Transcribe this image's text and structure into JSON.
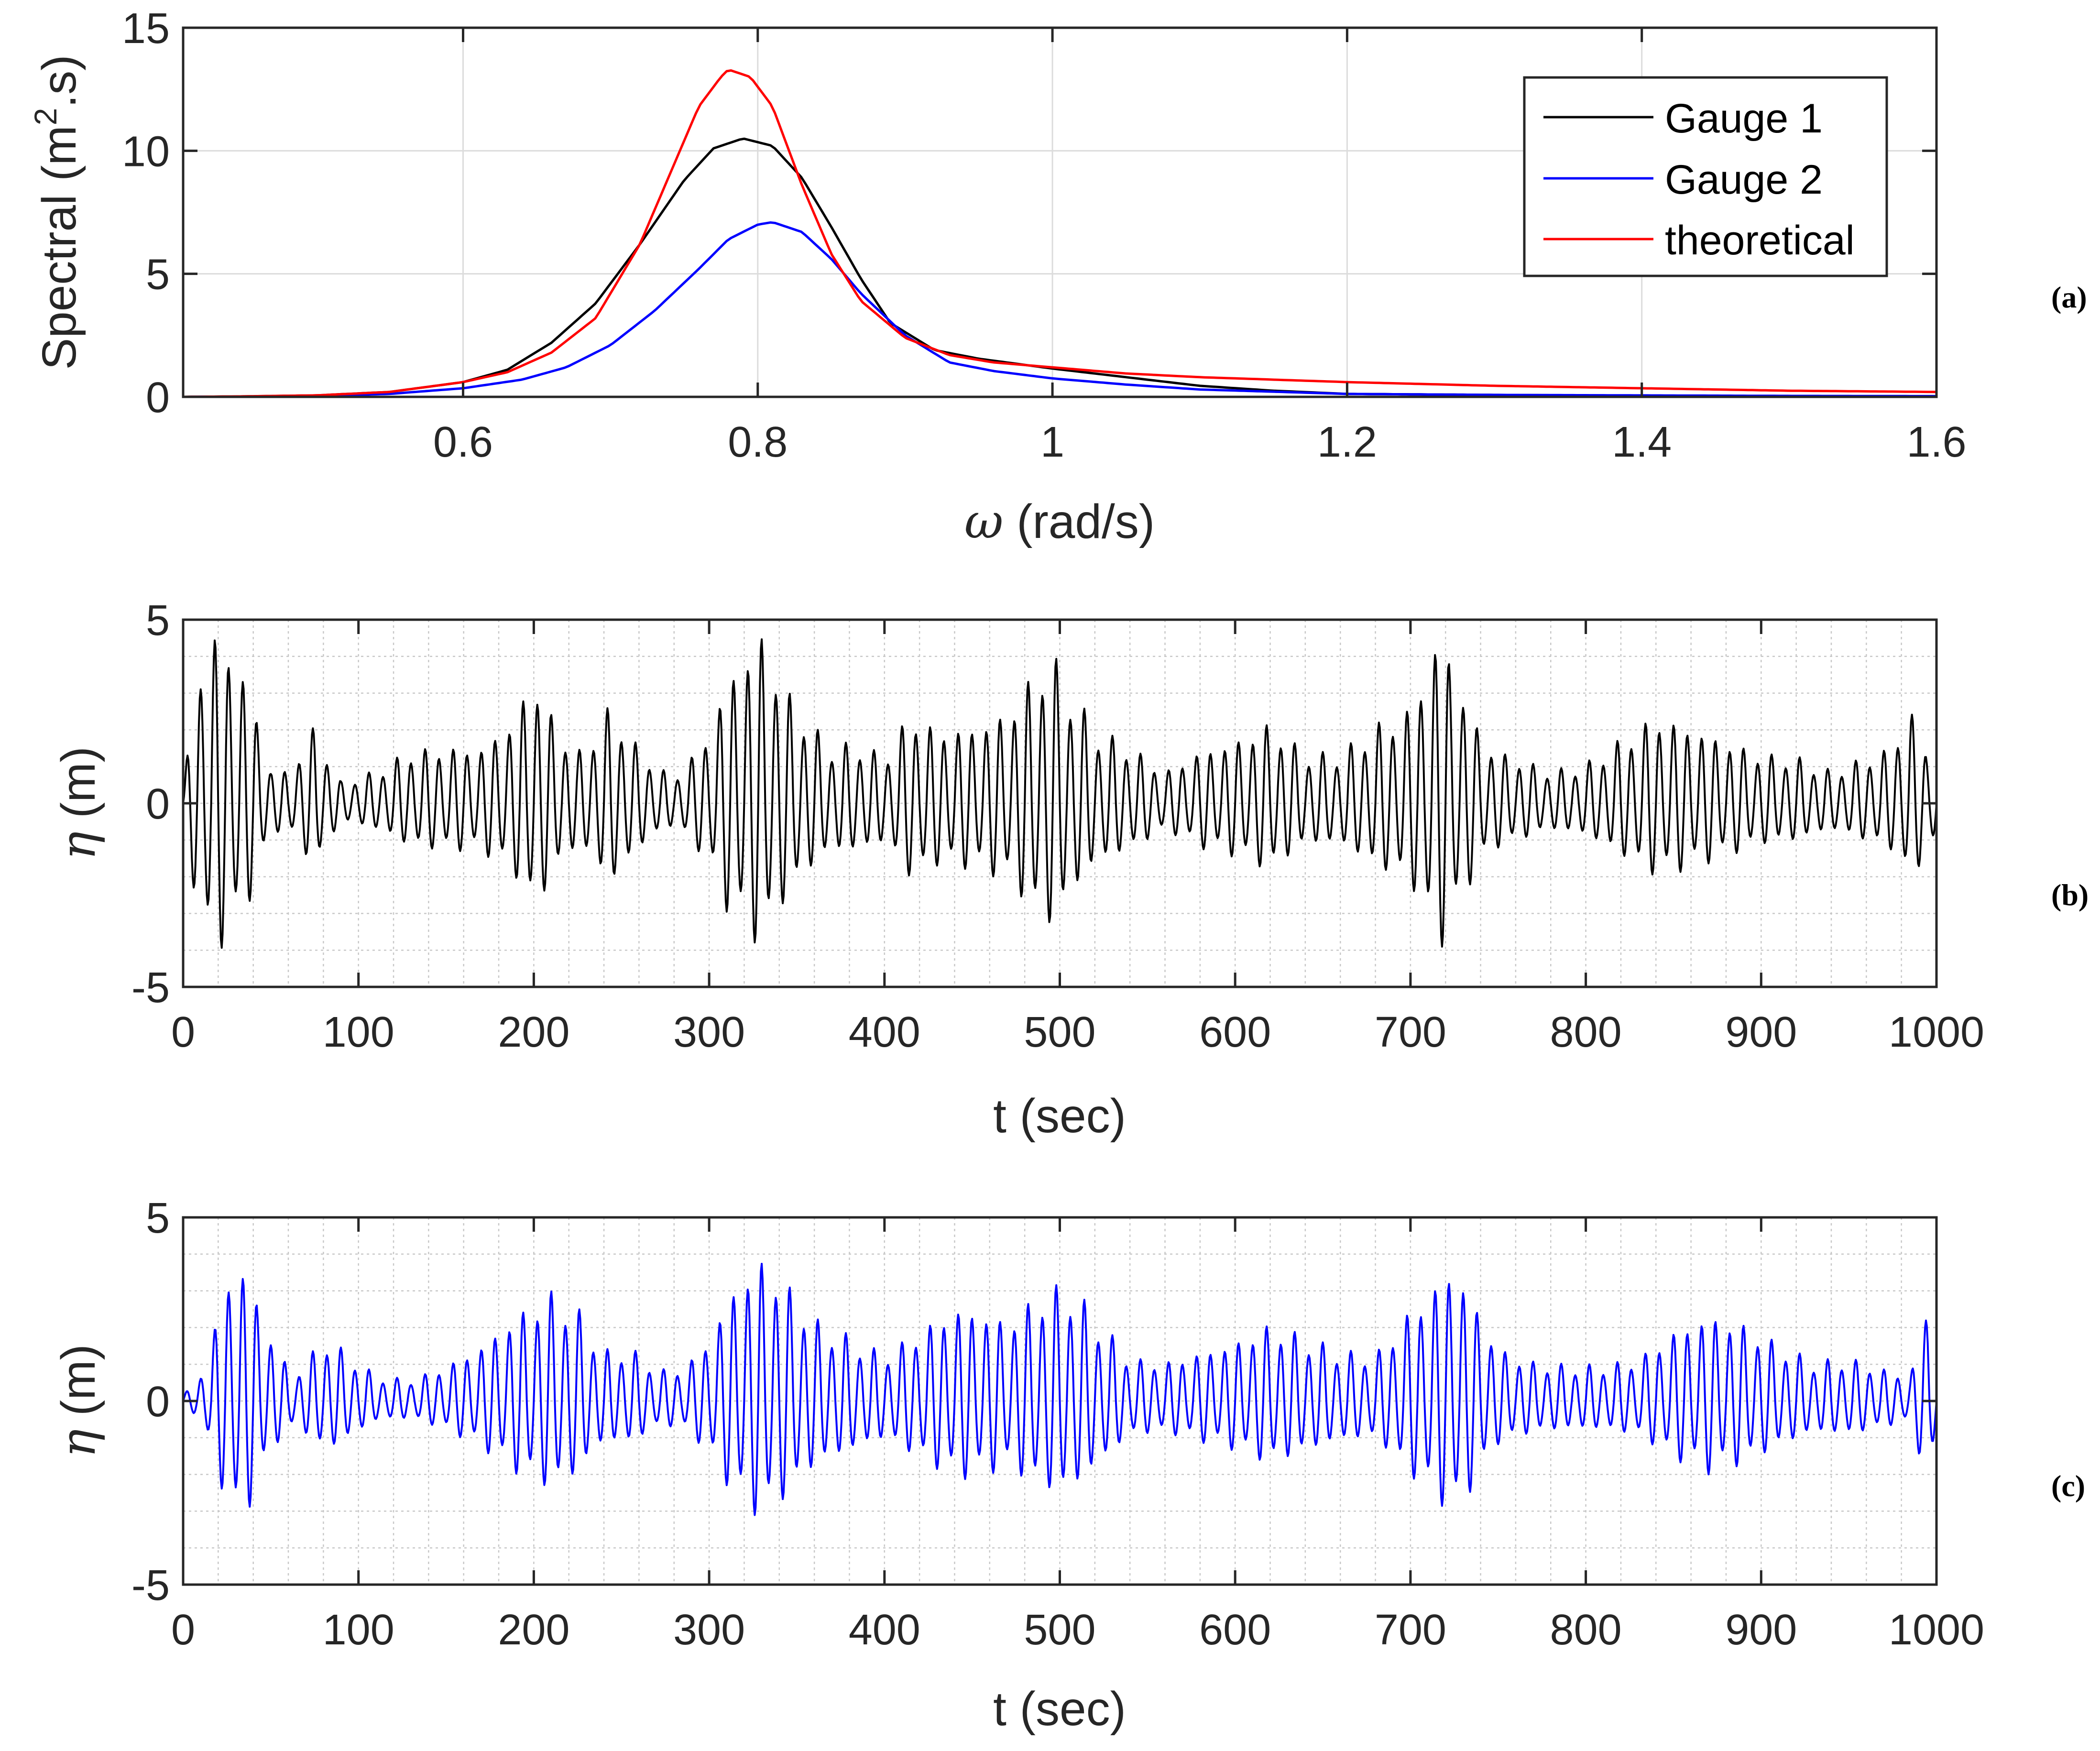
{
  "chart_data": [
    {
      "id": "a",
      "type": "line",
      "panel_label": "(a)",
      "title": "",
      "xlabel_symbol": "ω",
      "xlabel_unit": " (rad/s)",
      "ylabel": "Spectral (m²·s)",
      "ylabel_parts": {
        "pre": "Spectral (m",
        "sup": "2",
        "post": ".s)"
      },
      "xlim": [
        0.41,
        1.6
      ],
      "ylim": [
        0,
        15
      ],
      "xticks": [
        0.6,
        0.8,
        1.0,
        1.2,
        1.4,
        1.6
      ],
      "xtick_labels": [
        "0.6",
        "0.8",
        "1",
        "1.2",
        "1.4",
        "1.6"
      ],
      "yticks": [
        0,
        5,
        10,
        15
      ],
      "ytick_labels": [
        "0",
        "5",
        "10",
        "15"
      ],
      "grid": "major",
      "legend_position": "top-right",
      "series": [
        {
          "name": "Gauge 1",
          "color": "#000000",
          "x": [
            0.41,
            0.45,
            0.5,
            0.55,
            0.6,
            0.63,
            0.66,
            0.69,
            0.72,
            0.75,
            0.77,
            0.79,
            0.81,
            0.83,
            0.85,
            0.87,
            0.89,
            0.92,
            0.95,
            1.0,
            1.05,
            1.1,
            1.15,
            1.2,
            1.3,
            1.4,
            1.5,
            1.6
          ],
          "y": [
            0,
            0.02,
            0.06,
            0.2,
            0.6,
            1.1,
            2.2,
            3.8,
            6.2,
            8.8,
            10.1,
            10.5,
            10.2,
            8.9,
            6.9,
            4.8,
            3.0,
            1.9,
            1.55,
            1.15,
            0.8,
            0.45,
            0.25,
            0.12,
            0.08,
            0.05,
            0.03,
            0.02
          ]
        },
        {
          "name": "Gauge 2",
          "color": "#0000ff",
          "x": [
            0.41,
            0.45,
            0.5,
            0.55,
            0.6,
            0.64,
            0.67,
            0.7,
            0.73,
            0.76,
            0.78,
            0.8,
            0.81,
            0.83,
            0.85,
            0.87,
            0.9,
            0.93,
            0.96,
            1.0,
            1.05,
            1.1,
            1.2,
            1.3,
            1.4,
            1.5,
            1.6
          ],
          "y": [
            0,
            0.01,
            0.04,
            0.12,
            0.35,
            0.7,
            1.2,
            2.1,
            3.5,
            5.2,
            6.4,
            7.0,
            7.1,
            6.7,
            5.6,
            4.2,
            2.5,
            1.4,
            1.05,
            0.75,
            0.5,
            0.3,
            0.12,
            0.08,
            0.06,
            0.04,
            0.03
          ]
        },
        {
          "name": "theoretical",
          "color": "#ff0000",
          "x": [
            0.41,
            0.45,
            0.5,
            0.55,
            0.6,
            0.63,
            0.66,
            0.69,
            0.72,
            0.74,
            0.76,
            0.775,
            0.78,
            0.795,
            0.81,
            0.83,
            0.85,
            0.87,
            0.9,
            0.93,
            0.96,
            1.0,
            1.05,
            1.1,
            1.2,
            1.3,
            1.4,
            1.5,
            1.6
          ],
          "y": [
            0,
            0.02,
            0.06,
            0.2,
            0.6,
            1.0,
            1.8,
            3.2,
            6.2,
            9.0,
            11.8,
            13.0,
            13.3,
            13.0,
            11.8,
            8.6,
            5.8,
            3.9,
            2.4,
            1.7,
            1.4,
            1.2,
            0.95,
            0.8,
            0.6,
            0.45,
            0.35,
            0.25,
            0.2
          ]
        }
      ]
    },
    {
      "id": "b",
      "type": "line",
      "panel_label": "(b)",
      "xlabel": "t (sec)",
      "ylabel_symbol": "η",
      "ylabel_unit": " (m)",
      "xlim": [
        0,
        1000
      ],
      "ylim": [
        -5,
        5
      ],
      "xticks": [
        0,
        100,
        200,
        300,
        400,
        500,
        600,
        700,
        800,
        900,
        1000
      ],
      "xtick_labels": [
        "0",
        "100",
        "200",
        "300",
        "400",
        "500",
        "600",
        "700",
        "800",
        "900",
        "1000"
      ],
      "yticks": [
        -5,
        0,
        5
      ],
      "ytick_labels": [
        "-5",
        "0",
        "5"
      ],
      "grid": "minor",
      "series": [
        {
          "name": "Gauge 1",
          "color": "#000000",
          "sampling": {
            "t_start": 0,
            "t_end": 1000,
            "dt": 1.0
          },
          "wave": {
            "period_s": 8.0,
            "negative_scale": 0.82
          },
          "envelope_t": [
            0,
            5,
            12,
            20,
            27,
            35,
            42,
            50,
            60,
            75,
            90,
            110,
            130,
            150,
            170,
            190,
            200,
            210,
            225,
            245,
            260,
            280,
            300,
            310,
            320,
            330,
            340,
            355,
            370,
            385,
            400,
            415,
            430,
            450,
            470,
            485,
            495,
            505,
            520,
            540,
            560,
            580,
            600,
            620,
            640,
            660,
            680,
            700,
            712,
            720,
            730,
            745,
            760,
            780,
            800,
            820,
            840,
            860,
            880,
            900,
            920,
            940,
            960,
            975,
            985,
            995,
            1000
          ],
          "envelope_a": [
            0.3,
            2.6,
            4.6,
            5.0,
            4.4,
            3.8,
            2.5,
            1.0,
            0.9,
            2.2,
            0.6,
            0.9,
            1.5,
            1.6,
            1.6,
            2.5,
            3.8,
            2.5,
            1.4,
            2.8,
            1.5,
            0.7,
            2.0,
            3.6,
            4.3,
            4.9,
            3.6,
            2.4,
            1.6,
            1.7,
            1.3,
            2.6,
            2.1,
            2.2,
            2.6,
            3.7,
            4.3,
            3.3,
            2.1,
            1.6,
            0.9,
            1.5,
            1.8,
            2.3,
            1.4,
            1.4,
            2.2,
            2.7,
            4.4,
            4.9,
            3.1,
            1.6,
            1.3,
            0.9,
            1.1,
            1.8,
            2.5,
            2.2,
            1.8,
            1.4,
            1.3,
            0.9,
            1.3,
            1.6,
            2.8,
            1.4,
            1.6
          ]
        }
      ]
    },
    {
      "id": "c",
      "type": "line",
      "panel_label": "(c)",
      "xlabel": "t (sec)",
      "ylabel_symbol": "η",
      "ylabel_unit": " (m)",
      "xlim": [
        0,
        1000
      ],
      "ylim": [
        -5,
        5
      ],
      "xticks": [
        0,
        100,
        200,
        300,
        400,
        500,
        600,
        700,
        800,
        900,
        1000
      ],
      "xtick_labels": [
        "0",
        "100",
        "200",
        "300",
        "400",
        "500",
        "600",
        "700",
        "800",
        "900",
        "1000"
      ],
      "yticks": [
        -5,
        0,
        5
      ],
      "ytick_labels": [
        "-5",
        "0",
        "5"
      ],
      "grid": "minor",
      "series": [
        {
          "name": "Gauge 2",
          "color": "#0000ff",
          "sampling": {
            "t_start": 0,
            "t_end": 1000,
            "dt": 1.0
          },
          "wave": {
            "period_s": 8.0,
            "negative_scale": 0.8
          },
          "envelope_t": [
            0,
            8,
            15,
            22,
            30,
            38,
            45,
            55,
            65,
            80,
            95,
            110,
            130,
            150,
            170,
            190,
            210,
            225,
            240,
            255,
            270,
            285,
            300,
            315,
            330,
            345,
            360,
            380,
            400,
            420,
            440,
            455,
            470,
            490,
            505,
            520,
            540,
            560,
            580,
            600,
            620,
            640,
            660,
            680,
            700,
            715,
            725,
            735,
            750,
            770,
            790,
            810,
            830,
            850,
            870,
            890,
            910,
            930,
            950,
            970,
            985,
            995,
            1000
          ],
          "envelope_a": [
            0.2,
            0.5,
            1.5,
            3.0,
            4.2,
            3.6,
            2.5,
            1.3,
            0.8,
            1.8,
            1.3,
            0.7,
            0.6,
            1.0,
            1.6,
            2.5,
            3.1,
            2.6,
            1.4,
            1.5,
            0.9,
            0.9,
            1.8,
            3.4,
            4.1,
            3.3,
            2.3,
            1.8,
            1.3,
            2.0,
            2.7,
            2.6,
            2.3,
            3.1,
            3.3,
            2.4,
            1.2,
            1.1,
            1.4,
            1.7,
            2.2,
            1.8,
            1.4,
            1.3,
            2.6,
            3.4,
            4.0,
            3.0,
            1.5,
            1.1,
            1.0,
            1.0,
            1.2,
            2.0,
            2.5,
            2.2,
            1.6,
            1.1,
            1.2,
            0.9,
            0.7,
            2.9,
            1.3
          ]
        }
      ]
    }
  ]
}
